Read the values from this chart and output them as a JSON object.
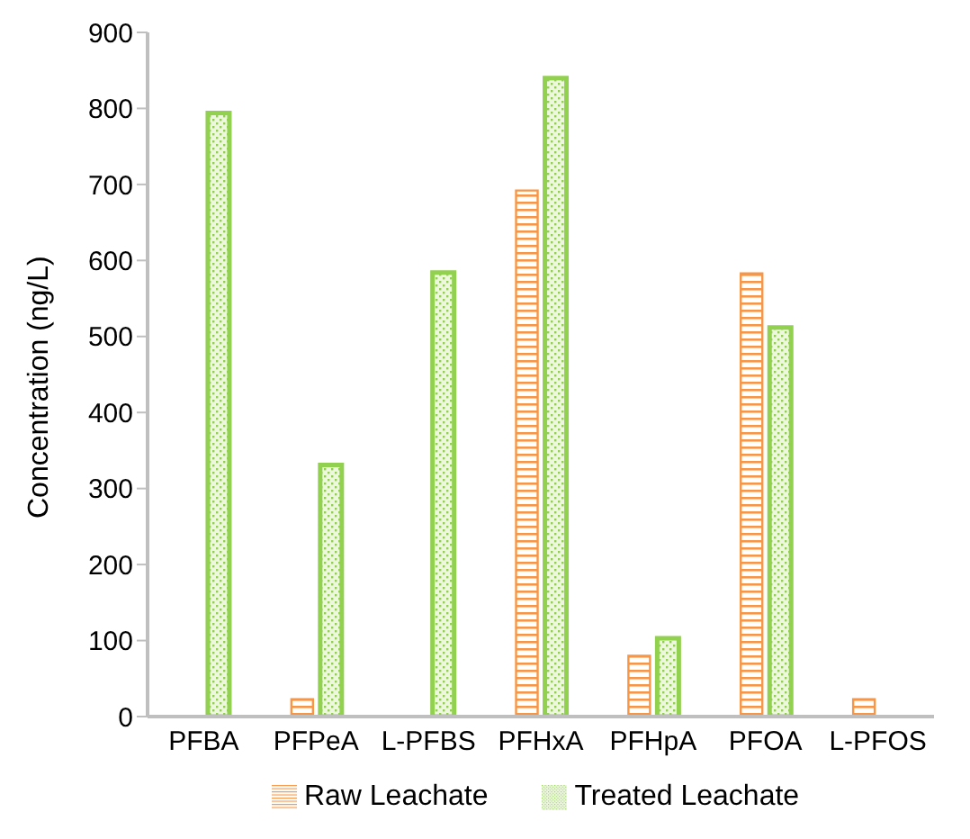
{
  "chart_data": {
    "type": "bar",
    "ylabel": "Concentration (ng/L)",
    "categories": [
      "PFBA",
      "PFPeA",
      "L-PFBS",
      "PFHxA",
      "PFHpA",
      "PFOA",
      "L-PFOS"
    ],
    "series": [
      {
        "name": "Raw Leachate",
        "color": "#f79646",
        "values": [
          null,
          23,
          null,
          692,
          80,
          583,
          23
        ]
      },
      {
        "name": "Treated Leachate",
        "color": "#92d050",
        "values": [
          794,
          331,
          584,
          840,
          103,
          512,
          null
        ]
      }
    ],
    "ylim": [
      0,
      900
    ],
    "yticks": [
      0,
      100,
      200,
      300,
      400,
      500,
      600,
      700,
      800,
      900
    ],
    "grid": false,
    "legend": "bottom"
  }
}
